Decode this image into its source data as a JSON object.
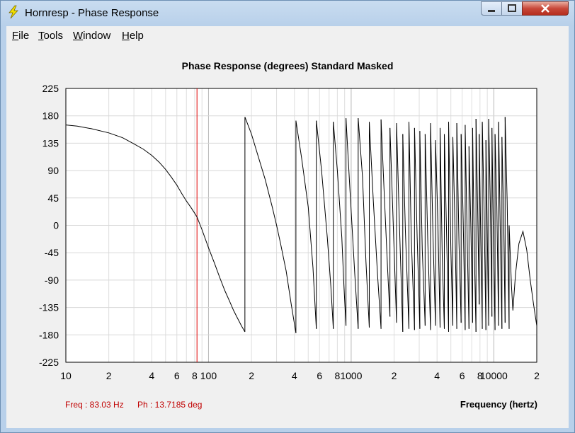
{
  "window": {
    "title": "Hornresp - Phase Response",
    "icon": "lightning-icon",
    "controls": [
      "minimize-icon",
      "maximize-icon",
      "close-icon"
    ]
  },
  "menu": {
    "file": "File",
    "tools": "Tools",
    "window": "Window",
    "help": "Help"
  },
  "readout": {
    "freq": "Freq : 83.03 Hz",
    "phase": "Ph : 13.7185 deg",
    "color": "#c00000"
  },
  "chart_data": {
    "type": "line",
    "title": "Phase Response (degrees)   Standard   Masked",
    "xlabel": "Frequency (hertz)",
    "ylabel": "",
    "x_scale": "log",
    "xlim": [
      10,
      20000
    ],
    "ylim": [
      -225,
      225
    ],
    "grid": true,
    "y_ticks": [
      225,
      180,
      135,
      90,
      45,
      0,
      -45,
      -90,
      -135,
      -180,
      -225
    ],
    "x_ticks": [
      {
        "v": 10,
        "label": "10"
      },
      {
        "v": 20,
        "label": "2"
      },
      {
        "v": 40,
        "label": "4"
      },
      {
        "v": 60,
        "label": "6"
      },
      {
        "v": 80,
        "label": "8"
      },
      {
        "v": 100,
        "label": "100"
      },
      {
        "v": 200,
        "label": "2"
      },
      {
        "v": 400,
        "label": "4"
      },
      {
        "v": 600,
        "label": "6"
      },
      {
        "v": 800,
        "label": "8"
      },
      {
        "v": 1000,
        "label": "1000"
      },
      {
        "v": 2000,
        "label": "2"
      },
      {
        "v": 4000,
        "label": "4"
      },
      {
        "v": 6000,
        "label": "6"
      },
      {
        "v": 8000,
        "label": "8"
      },
      {
        "v": 10000,
        "label": "10000"
      },
      {
        "v": 20000,
        "label": "2"
      }
    ],
    "cursor": {
      "x": 83.03,
      "y": 13.7185,
      "color": "#e00000"
    },
    "line_color": "#000000",
    "series": [
      {
        "x": [
          10,
          12,
          15,
          20,
          25,
          30,
          35,
          40,
          45,
          50,
          55,
          60,
          65,
          70,
          75,
          80,
          83.03,
          90,
          100,
          110,
          120,
          130,
          140,
          150,
          160,
          170,
          179.9
        ],
        "y": [
          165,
          163,
          159,
          152,
          144,
          134,
          125,
          115,
          104,
          92,
          79,
          66,
          52,
          40,
          30,
          20,
          13.7,
          -7,
          -37,
          -62,
          -86,
          -107,
          -124,
          -140,
          -153,
          -165,
          -175
        ]
      },
      {
        "x": [
          180,
          200,
          220,
          250,
          280,
          300,
          320,
          350,
          380,
          409.9
        ],
        "y": [
          178,
          150,
          118,
          75,
          30,
          0,
          -30,
          -75,
          -130,
          -177
        ]
      },
      {
        "x": [
          410,
          450,
          500,
          540,
          569.9
        ],
        "y": [
          172,
          110,
          30,
          -70,
          -170
        ]
      },
      {
        "x": [
          570,
          620,
          680,
          720,
          749.9
        ],
        "y": [
          172,
          90,
          -20,
          -100,
          -170
        ]
      },
      {
        "x": [
          750,
          800,
          860,
          890,
          919.9
        ],
        "y": [
          170,
          90,
          -20,
          -100,
          -165
        ]
      },
      {
        "x": [
          920,
          980,
          1060,
          1119.9
        ],
        "y": [
          176,
          60,
          -80,
          -170
        ]
      },
      {
        "x": [
          1120,
          1200,
          1270,
          1339.9
        ],
        "y": [
          176,
          80,
          -60,
          -168
        ]
      },
      {
        "x": [
          1340,
          1430,
          1530,
          1619.9
        ],
        "y": [
          170,
          40,
          -80,
          -170
        ]
      },
      {
        "x": [
          1620,
          1700,
          1800,
          1869.9
        ],
        "y": [
          174,
          60,
          -70,
          -150
        ]
      },
      {
        "x": [
          1870,
          1960,
          2079.9
        ],
        "y": [
          160,
          20,
          -160
        ]
      },
      {
        "x": [
          2080,
          2180,
          2299.9
        ],
        "y": [
          168,
          0,
          -175
        ]
      },
      {
        "x": [
          2300,
          2400,
          2539.9
        ],
        "y": [
          150,
          -10,
          -170
        ]
      },
      {
        "x": [
          2540,
          2640,
          2779.9
        ],
        "y": [
          170,
          -20,
          -172
        ]
      },
      {
        "x": [
          2780,
          2900,
          3029.9
        ],
        "y": [
          160,
          -20,
          -170
        ]
      },
      {
        "x": [
          3030,
          3150,
          3299.9
        ],
        "y": [
          155,
          -40,
          -165
        ]
      },
      {
        "x": [
          3300,
          3450,
          3599.9
        ],
        "y": [
          150,
          -30,
          -172
        ]
      },
      {
        "x": [
          3600,
          3750,
          3899.9
        ],
        "y": [
          168,
          -20,
          -165
        ]
      },
      {
        "x": [
          3900,
          4050,
          4199.9
        ],
        "y": [
          140,
          10,
          -168
        ]
      },
      {
        "x": [
          4200,
          4350,
          4499.9
        ],
        "y": [
          160,
          -50,
          -170
        ]
      },
      {
        "x": [
          4500,
          4650,
          4819.9
        ],
        "y": [
          150,
          0,
          -175
        ]
      },
      {
        "x": [
          4820,
          5000,
          5159.9
        ],
        "y": [
          170,
          -40,
          -165
        ]
      },
      {
        "x": [
          5160,
          5320,
          5499.9
        ],
        "y": [
          145,
          20,
          -170
        ]
      },
      {
        "x": [
          5500,
          5700,
          5899.9
        ],
        "y": [
          168,
          -30,
          -160
        ]
      },
      {
        "x": [
          5900,
          6100,
          6299.9
        ],
        "y": [
          150,
          10,
          -172
        ]
      },
      {
        "x": [
          6300,
          6500,
          6699.9
        ],
        "y": [
          165,
          -20,
          -170
        ]
      },
      {
        "x": [
          6700,
          6900,
          7099.9
        ],
        "y": [
          130,
          0,
          -160
        ]
      },
      {
        "x": [
          7100,
          7300,
          7499.9
        ],
        "y": [
          160,
          -40,
          -175
        ]
      },
      {
        "x": [
          7500,
          7700,
          7899.9
        ],
        "y": [
          175,
          30,
          -130
        ]
      },
      {
        "x": [
          7900,
          8100,
          8299.9
        ],
        "y": [
          150,
          -20,
          -170
        ]
      },
      {
        "x": [
          8300,
          8550,
          8799.9
        ],
        "y": [
          170,
          20,
          -172
        ]
      },
      {
        "x": [
          8800,
          9000,
          9199.9
        ],
        "y": [
          140,
          -10,
          -165
        ]
      },
      {
        "x": [
          9200,
          9450,
          9699.9
        ],
        "y": [
          175,
          40,
          -150
        ]
      },
      {
        "x": [
          9700,
          9950,
          10199.9
        ],
        "y": [
          160,
          -30,
          -172
        ]
      },
      {
        "x": [
          10200,
          10500,
          10799.9
        ],
        "y": [
          150,
          30,
          -165
        ]
      },
      {
        "x": [
          10800,
          11100,
          11399.9
        ],
        "y": [
          170,
          -10,
          -170
        ]
      },
      {
        "x": [
          11400,
          11700,
          11999.9
        ],
        "y": [
          145,
          20,
          -160
        ]
      },
      {
        "x": [
          12000,
          12400,
          12799.9
        ],
        "y": [
          178,
          40,
          -170
        ]
      },
      {
        "x": [
          12800,
          13300,
          13600,
          14200,
          15000,
          16000,
          17000,
          18000,
          19000,
          20000
        ],
        "y": [
          0,
          -100,
          -140,
          -80,
          -30,
          -10,
          -40,
          -90,
          -130,
          -165
        ]
      }
    ]
  }
}
